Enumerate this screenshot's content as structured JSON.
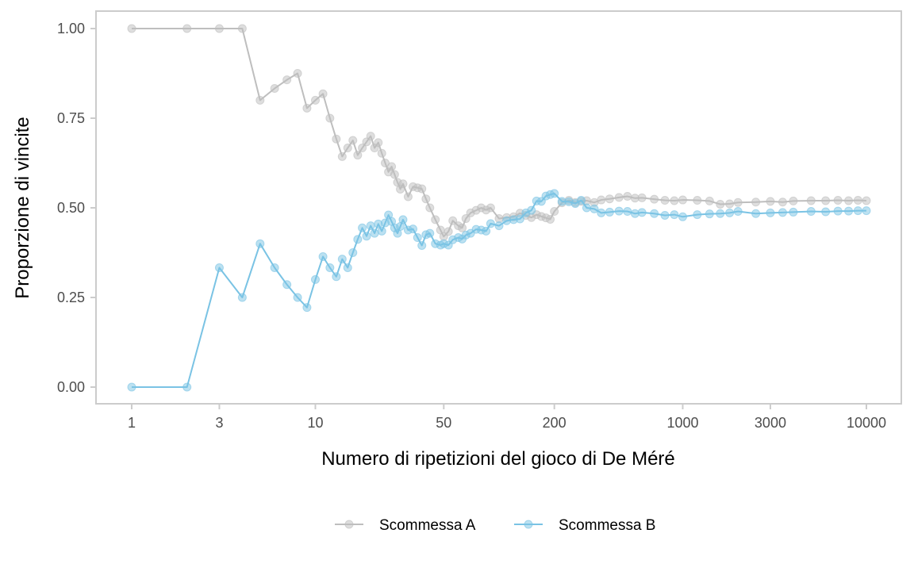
{
  "chart_data": {
    "type": "line",
    "xlabel": "Numero di ripetizioni del gioco di De Méré",
    "ylabel": "Proporzione di vincite",
    "x_scale": "log10",
    "xlim": [
      1,
      10000
    ],
    "ylim": [
      0,
      1
    ],
    "x_ticks": [
      1,
      3,
      10,
      50,
      200,
      1000,
      3000,
      10000
    ],
    "x_tick_labels": [
      "1",
      "3",
      "10",
      "50",
      "200",
      "1000",
      "3000",
      "10000"
    ],
    "y_ticks": [
      0,
      0.25,
      0.5,
      0.75,
      1
    ],
    "y_tick_labels": [
      "0.00",
      "0.25",
      "0.50",
      "0.75",
      "1.00"
    ],
    "grid": false,
    "legend_position": "bottom",
    "series": [
      {
        "name": "Scommessa A",
        "color": "#bebebe",
        "x": [
          1,
          2,
          3,
          4,
          5,
          6,
          7,
          8,
          9,
          10,
          11,
          12,
          13,
          14,
          15,
          16,
          17,
          18,
          19,
          20,
          21,
          22,
          23,
          24,
          25,
          26,
          27,
          28,
          29,
          30,
          32,
          34,
          36,
          38,
          40,
          42,
          45,
          48,
          50,
          53,
          56,
          60,
          63,
          66,
          70,
          75,
          80,
          85,
          90,
          100,
          110,
          120,
          130,
          140,
          150,
          160,
          170,
          180,
          190,
          200,
          220,
          240,
          260,
          280,
          300,
          330,
          360,
          400,
          450,
          500,
          550,
          600,
          700,
          800,
          900,
          1000,
          1200,
          1400,
          1600,
          1800,
          2000,
          2500,
          3000,
          3500,
          4000,
          5000,
          6000,
          7000,
          8000,
          9000,
          10000
        ],
        "y": [
          1.0,
          1.0,
          1.0,
          1.0,
          0.8,
          0.833,
          0.857,
          0.875,
          0.778,
          0.8,
          0.818,
          0.75,
          0.692,
          0.643,
          0.667,
          0.688,
          0.647,
          0.667,
          0.684,
          0.7,
          0.667,
          0.682,
          0.652,
          0.625,
          0.6,
          0.615,
          0.593,
          0.571,
          0.552,
          0.567,
          0.531,
          0.559,
          0.556,
          0.553,
          0.525,
          0.5,
          0.467,
          0.438,
          0.42,
          0.434,
          0.464,
          0.45,
          0.444,
          0.47,
          0.486,
          0.493,
          0.5,
          0.494,
          0.5,
          0.47,
          0.473,
          0.475,
          0.485,
          0.479,
          0.473,
          0.481,
          0.476,
          0.472,
          0.468,
          0.49,
          0.514,
          0.521,
          0.515,
          0.518,
          0.52,
          0.515,
          0.522,
          0.525,
          0.529,
          0.532,
          0.527,
          0.528,
          0.524,
          0.521,
          0.52,
          0.522,
          0.521,
          0.519,
          0.51,
          0.511,
          0.515,
          0.516,
          0.518,
          0.516,
          0.519,
          0.52,
          0.52,
          0.521,
          0.52,
          0.521,
          0.52
        ]
      },
      {
        "name": "Scommessa B",
        "color": "#7ac3e4",
        "x": [
          1,
          2,
          3,
          4,
          5,
          6,
          7,
          8,
          9,
          10,
          11,
          12,
          13,
          14,
          15,
          16,
          17,
          18,
          19,
          20,
          21,
          22,
          23,
          24,
          25,
          26,
          27,
          28,
          29,
          30,
          32,
          34,
          36,
          38,
          40,
          42,
          45,
          48,
          50,
          53,
          56,
          60,
          63,
          66,
          70,
          75,
          80,
          85,
          90,
          100,
          110,
          120,
          130,
          140,
          150,
          160,
          170,
          180,
          190,
          200,
          220,
          240,
          260,
          280,
          300,
          330,
          360,
          400,
          450,
          500,
          550,
          600,
          700,
          800,
          900,
          1000,
          1200,
          1400,
          1600,
          1800,
          2000,
          2500,
          3000,
          3500,
          4000,
          5000,
          6000,
          7000,
          8000,
          9000,
          10000
        ],
        "y": [
          0.0,
          0.0,
          0.333,
          0.25,
          0.4,
          0.333,
          0.286,
          0.25,
          0.222,
          0.3,
          0.364,
          0.333,
          0.308,
          0.357,
          0.333,
          0.375,
          0.412,
          0.444,
          0.421,
          0.45,
          0.429,
          0.455,
          0.435,
          0.458,
          0.48,
          0.462,
          0.444,
          0.429,
          0.448,
          0.467,
          0.438,
          0.441,
          0.417,
          0.395,
          0.425,
          0.429,
          0.4,
          0.396,
          0.4,
          0.396,
          0.411,
          0.417,
          0.413,
          0.424,
          0.429,
          0.44,
          0.438,
          0.435,
          0.456,
          0.45,
          0.464,
          0.467,
          0.469,
          0.486,
          0.493,
          0.519,
          0.518,
          0.533,
          0.537,
          0.54,
          0.518,
          0.517,
          0.512,
          0.521,
          0.5,
          0.497,
          0.486,
          0.488,
          0.491,
          0.49,
          0.484,
          0.487,
          0.484,
          0.479,
          0.481,
          0.475,
          0.481,
          0.483,
          0.484,
          0.486,
          0.49,
          0.484,
          0.486,
          0.487,
          0.488,
          0.49,
          0.489,
          0.491,
          0.491,
          0.492,
          0.492
        ]
      }
    ]
  }
}
